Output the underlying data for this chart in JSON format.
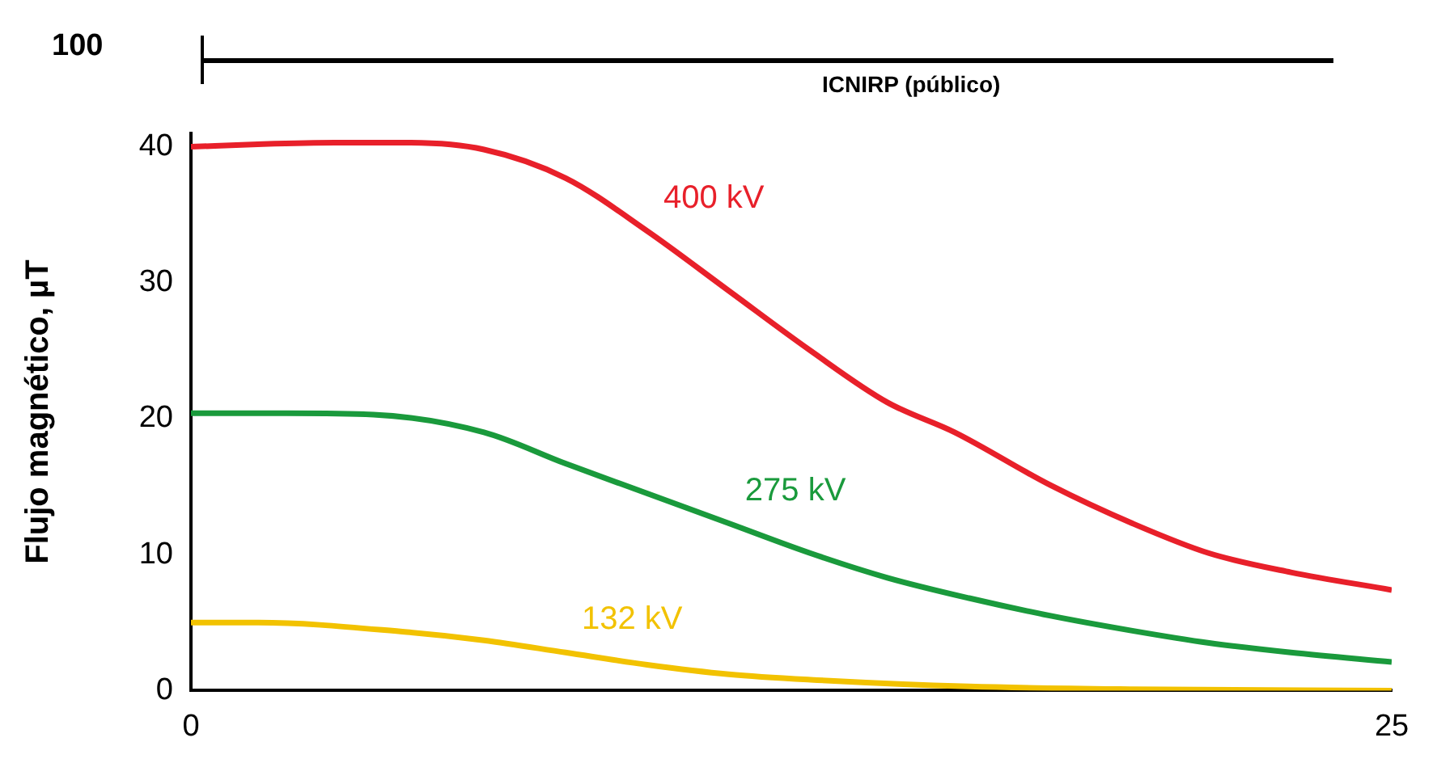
{
  "chart_data": [
    {
      "type": "other",
      "annotations": [
        "100",
        "ICNIRP (público)"
      ]
    },
    {
      "type": "line",
      "ylabel": "Flujo magnético, µT",
      "xlim": [
        0,
        25
      ],
      "xticks": [
        0,
        25
      ],
      "ylim": [
        0,
        41
      ],
      "yticks": [
        0,
        10,
        20,
        30,
        40
      ],
      "grid": false,
      "legend": false,
      "marker": "none",
      "line_style": "solid",
      "series": [
        {
          "name": "400 kV",
          "color": "#e8202a",
          "x": [
            0,
            1.5,
            3,
            4.5,
            6.1,
            7.8,
            9.5,
            11.2,
            12.9,
            14.5,
            15.9,
            17.9,
            19.6,
            21.2,
            22.9,
            25
          ],
          "values": [
            40,
            40.2,
            40.3,
            40.3,
            39.8,
            37.7,
            33.8,
            29.4,
            25,
            21.2,
            19,
            15.1,
            12.3,
            10.1,
            8.7,
            7.4
          ]
        },
        {
          "name": "275 kV",
          "color": "#1a9a3c",
          "x": [
            0,
            2,
            3.8,
            6.1,
            7.8,
            9.5,
            11.2,
            12.9,
            14.5,
            16.2,
            17.9,
            19.6,
            21.2,
            22.9,
            25
          ],
          "values": [
            20.4,
            20.4,
            20.3,
            19,
            16.7,
            14.5,
            12.3,
            10.1,
            8.3,
            6.8,
            5.5,
            4.4,
            3.5,
            2.8,
            2.1
          ]
        },
        {
          "name": "132 kV",
          "color": "#f2c200",
          "x": [
            0,
            1.4,
            4.5,
            6.1,
            7.8,
            9.5,
            11.2,
            12.9,
            16.2,
            19.6,
            25
          ],
          "values": [
            5,
            5,
            4.3,
            3.7,
            2.8,
            1.9,
            1.2,
            0.8,
            0.3,
            0.1,
            0
          ]
        }
      ]
    }
  ]
}
